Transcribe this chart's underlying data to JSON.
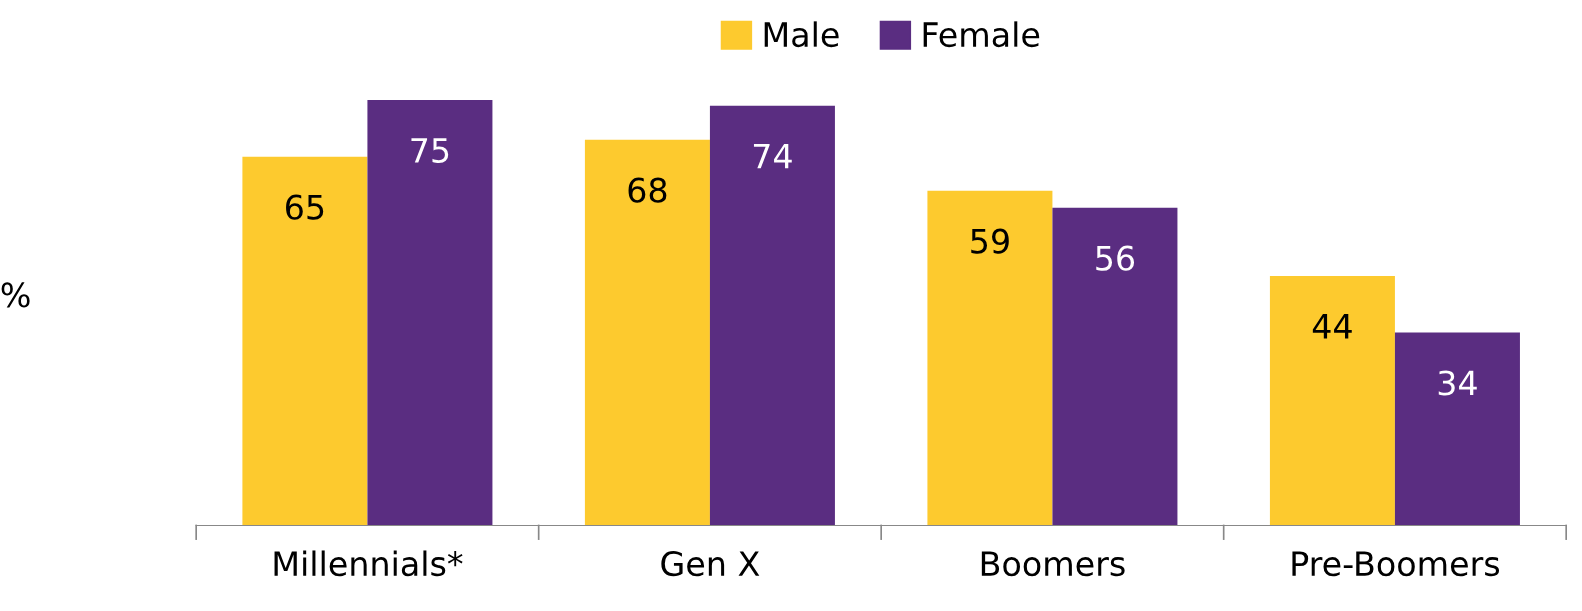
{
  "chart_data": {
    "type": "bar",
    "ylabel": "%",
    "categories": [
      "Millennials*",
      "Gen X",
      "Boomers",
      "Pre-Boomers"
    ],
    "series": [
      {
        "name": "Male",
        "color": "#fdca2e",
        "values": [
          65,
          68,
          59,
          44
        ]
      },
      {
        "name": "Female",
        "color": "#5a2d81",
        "values": [
          75,
          74,
          56,
          34
        ]
      }
    ],
    "data_labels": true,
    "grid": false,
    "legend": "top"
  }
}
